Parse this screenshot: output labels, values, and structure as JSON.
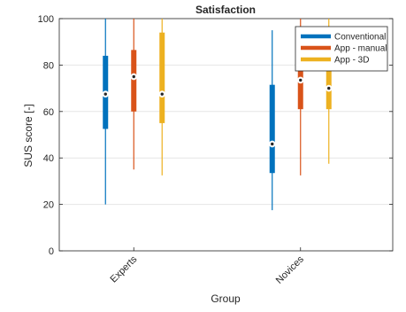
{
  "chart_data": {
    "type": "boxplot",
    "title": "Satisfaction",
    "xlabel": "Group",
    "ylabel": "SUS score [-]",
    "ylim": [
      0,
      100
    ],
    "yticks": [
      0,
      20,
      40,
      60,
      80,
      100
    ],
    "grid": "y",
    "legend_position": "top-right",
    "categories": [
      "Experts",
      "Novices"
    ],
    "series": [
      {
        "name": "Conventional",
        "color": "#0072BD",
        "boxes": [
          {
            "min": 20,
            "q1": 52.5,
            "median": 67.5,
            "q3": 84,
            "max": 100
          },
          {
            "min": 17.5,
            "q1": 33.5,
            "median": 46,
            "q3": 71.5,
            "max": 95
          }
        ]
      },
      {
        "name": "App - manual",
        "color": "#D95319",
        "boxes": [
          {
            "min": 35,
            "q1": 60,
            "median": 75,
            "q3": 86.5,
            "max": 100
          },
          {
            "min": 32.5,
            "q1": 61,
            "median": 73.5,
            "q3": 85,
            "max": 100
          }
        ]
      },
      {
        "name": "App - 3D",
        "color": "#EDB120",
        "boxes": [
          {
            "min": 32.5,
            "q1": 55,
            "median": 67.5,
            "q3": 94,
            "max": 100
          },
          {
            "min": 37.5,
            "q1": 61,
            "median": 70,
            "q3": 87.5,
            "max": 100
          }
        ]
      }
    ]
  }
}
